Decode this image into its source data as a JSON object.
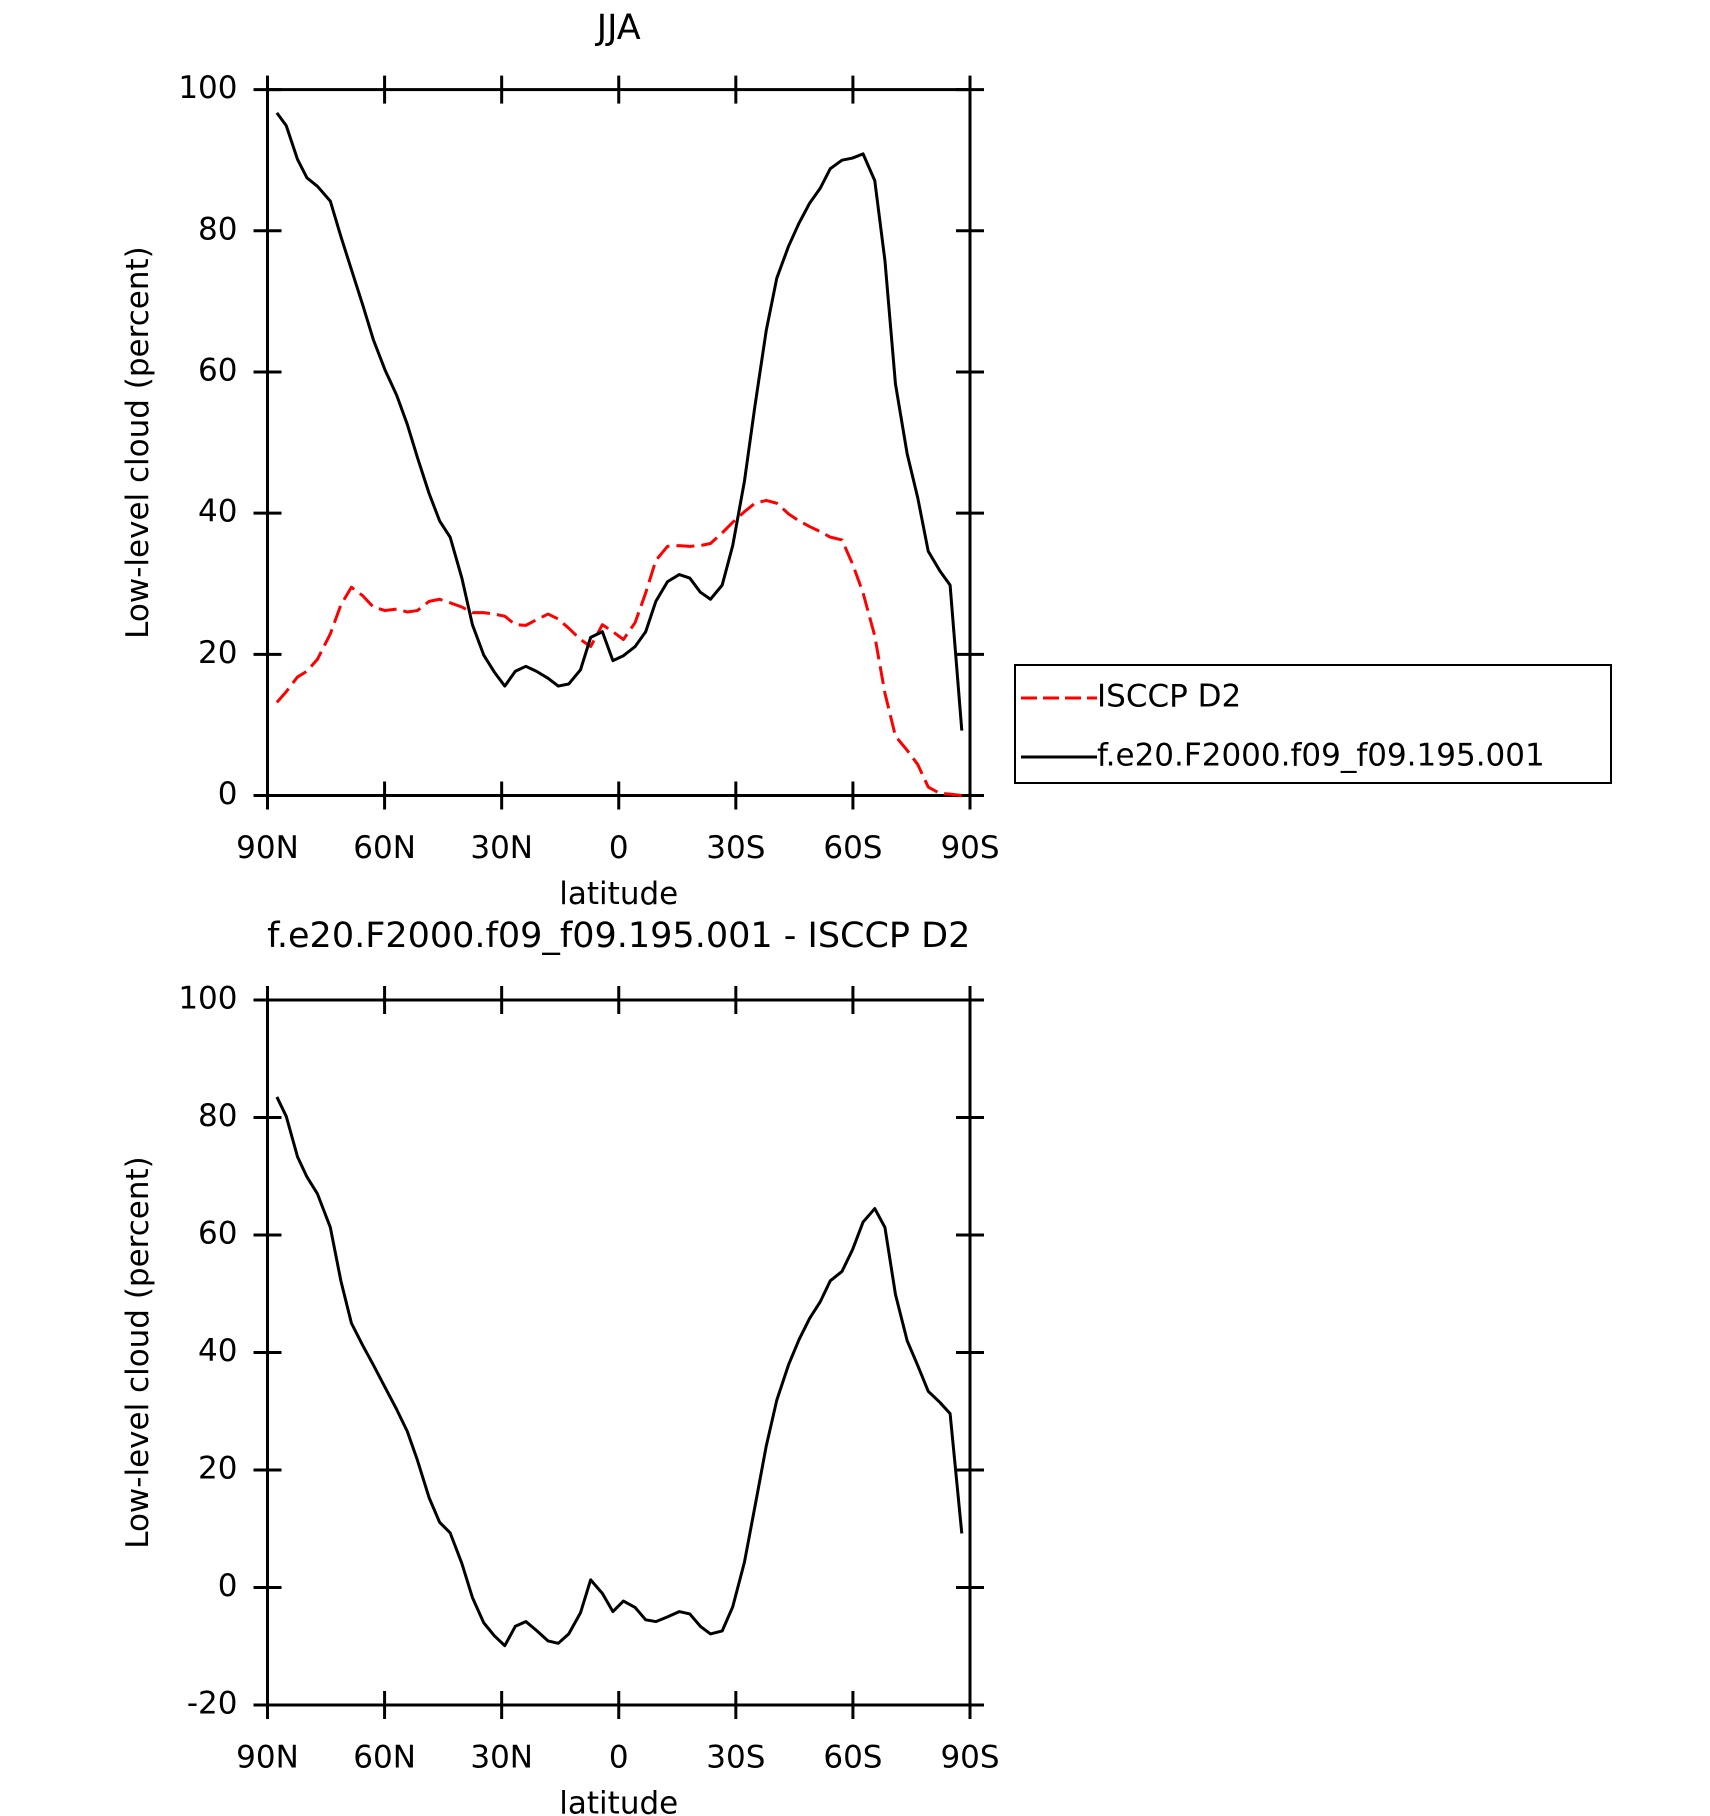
{
  "chart_data": [
    {
      "type": "line",
      "title": "JJA",
      "xlabel": "latitude",
      "ylabel": "Low-level cloud (percent)",
      "xlim": [
        90,
        -90
      ],
      "xticks": [
        {
          "value": 90,
          "label": "90N"
        },
        {
          "value": 60,
          "label": "60N"
        },
        {
          "value": 30,
          "label": "30N"
        },
        0,
        {
          "value": -30,
          "label": "30S"
        },
        {
          "value": -60,
          "label": "60S"
        },
        {
          "value": -90,
          "label": "90S"
        }
      ],
      "ylim": [
        0,
        100
      ],
      "yticks": [
        0,
        20,
        40,
        60,
        80,
        100
      ],
      "legend": "right",
      "x": [
        87.6,
        85.2,
        82.3,
        79.9,
        77.2,
        73.9,
        71.2,
        68.5,
        65.6,
        62.9,
        59.9,
        56.9,
        54.2,
        51.6,
        48.6,
        45.9,
        43.2,
        40.2,
        37.5,
        34.6,
        31.9,
        29.2,
        26.5,
        23.8,
        21.1,
        18.1,
        15.5,
        12.8,
        9.8,
        7.2,
        4.2,
        1.5,
        -1.2,
        -4.2,
        -6.9,
        -9.5,
        -12.5,
        -15.5,
        -18.2,
        -20.9,
        -23.5,
        -26.5,
        -29.2,
        -32.2,
        -34.9,
        -37.8,
        -40.5,
        -43.5,
        -46.2,
        -48.9,
        -51.6,
        -54.2,
        -57.2,
        -59.9,
        -62.6,
        -65.6,
        -68.2,
        -70.9,
        -73.9,
        -76.6,
        -79.3,
        -82.3,
        -84.9,
        -87.9
      ],
      "series": [
        {
          "name": "ISCCP D2",
          "color": "#ff0000",
          "style": "dashed",
          "values": [
            13.2,
            14.7,
            16.8,
            17.6,
            19.3,
            22.9,
            27.0,
            29.5,
            28.3,
            26.7,
            26.2,
            26.4,
            26.0,
            26.2,
            27.5,
            27.8,
            27.3,
            26.7,
            25.9,
            25.9,
            25.7,
            25.4,
            24.2,
            24.1,
            24.9,
            25.7,
            25.0,
            23.7,
            22.1,
            21.1,
            24.2,
            23.2,
            22.1,
            24.5,
            28.7,
            33.3,
            35.3,
            35.4,
            35.3,
            35.4,
            35.7,
            37.2,
            38.7,
            40.2,
            41.4,
            41.8,
            41.4,
            39.9,
            38.9,
            38.1,
            37.4,
            36.6,
            36.2,
            32.8,
            28.7,
            22.6,
            14.5,
            8.4,
            6.4,
            4.4,
            1.2,
            0.3,
            0.2,
            0
          ]
        },
        {
          "name": "f.e20.F2000.f09_f09.195.001",
          "color": "#000000",
          "style": "solid",
          "values": [
            96.7,
            94.9,
            90.1,
            87.5,
            86.3,
            84.2,
            79.2,
            74.5,
            69.5,
            64.6,
            60.3,
            56.7,
            52.6,
            47.9,
            42.8,
            38.9,
            36.6,
            30.8,
            24.2,
            19.9,
            17.5,
            15.5,
            17.6,
            18.3,
            17.6,
            16.6,
            15.5,
            15.8,
            17.8,
            22.4,
            23.2,
            19.1,
            19.8,
            21.1,
            23.2,
            27.5,
            30.3,
            31.3,
            30.8,
            28.8,
            27.8,
            29.8,
            35.4,
            44.5,
            55.2,
            65.9,
            73.3,
            77.8,
            81.1,
            83.9,
            86.0,
            88.8,
            90.0,
            90.3,
            90.9,
            87.1,
            75.8,
            58.3,
            48.4,
            42.2,
            34.6,
            31.8,
            29.8,
            9.2
          ]
        }
      ]
    },
    {
      "type": "line",
      "title": "f.e20.F2000.f09_f09.195.001 - ISCCP D2",
      "xlabel": "latitude",
      "ylabel": "Low-level cloud (percent)",
      "xlim": [
        90,
        -90
      ],
      "xticks": [
        {
          "value": 90,
          "label": "90N"
        },
        {
          "value": 60,
          "label": "60N"
        },
        {
          "value": 30,
          "label": "30N"
        },
        0,
        {
          "value": -30,
          "label": "30S"
        },
        {
          "value": -60,
          "label": "60S"
        },
        {
          "value": -90,
          "label": "90S"
        }
      ],
      "ylim": [
        -20,
        100
      ],
      "yticks": [
        -20,
        0,
        20,
        40,
        60,
        80,
        100
      ],
      "x": [
        87.6,
        85.2,
        82.3,
        79.9,
        77.2,
        73.9,
        71.2,
        68.5,
        65.6,
        62.9,
        59.9,
        56.9,
        54.2,
        51.6,
        48.6,
        45.9,
        43.2,
        40.2,
        37.5,
        34.6,
        31.9,
        29.2,
        26.5,
        23.8,
        21.1,
        18.1,
        15.5,
        12.8,
        9.8,
        7.2,
        4.2,
        1.5,
        -1.2,
        -4.2,
        -6.9,
        -9.5,
        -12.5,
        -15.5,
        -18.2,
        -20.9,
        -23.5,
        -26.5,
        -29.2,
        -32.2,
        -34.9,
        -37.8,
        -40.5,
        -43.5,
        -46.2,
        -48.9,
        -51.6,
        -54.2,
        -57.2,
        -59.9,
        -62.6,
        -65.6,
        -68.2,
        -70.9,
        -73.9,
        -76.6,
        -79.3,
        -82.3,
        -84.9,
        -87.9
      ],
      "color": "#000000",
      "values": [
        83.5,
        80.2,
        73.3,
        69.9,
        67.0,
        61.3,
        52.2,
        45.0,
        41.2,
        37.9,
        34.1,
        30.3,
        26.6,
        21.7,
        15.3,
        11.1,
        9.3,
        4.1,
        -1.7,
        -6.0,
        -8.2,
        -9.9,
        -6.6,
        -5.8,
        -7.3,
        -9.1,
        -9.5,
        -7.9,
        -4.3,
        1.3,
        -1.0,
        -4.1,
        -2.3,
        -3.4,
        -5.5,
        -5.8,
        -5.0,
        -4.1,
        -4.5,
        -6.6,
        -7.9,
        -7.4,
        -3.3,
        4.3,
        13.8,
        24.1,
        31.9,
        37.9,
        42.2,
        45.8,
        48.6,
        52.2,
        53.8,
        57.5,
        62.2,
        64.5,
        61.3,
        49.9,
        42.0,
        37.8,
        33.4,
        31.5,
        29.6,
        9.2
      ]
    }
  ]
}
